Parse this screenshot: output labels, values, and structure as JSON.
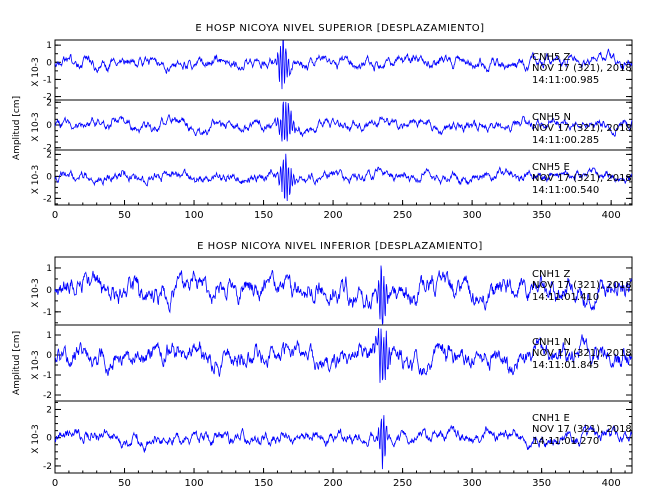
{
  "chart_data": [
    {
      "type": "line",
      "title": "E HOSP NICOYA NIVEL SUPERIOR [DESPLAZAMIENTO]",
      "ylabel": "Amplitud [cm]",
      "scale_label": "X 10-3",
      "xlim": [
        0,
        415
      ],
      "xticks": [
        "0",
        "50",
        "100",
        "150",
        "200",
        "250",
        "300",
        "350",
        "400"
      ],
      "colors": {
        "trace": "#0000ff",
        "axes": "#000000"
      },
      "panels": [
        {
          "name": "CNH5 Z",
          "channel": "CNH5",
          "component": "Z",
          "date": "NOV 17 (321), 2018",
          "time": "14:11:00.985",
          "ylim": [
            -2.2,
            1.3
          ],
          "yticks": [
            "1",
            "0",
            "-1",
            "-2"
          ],
          "noise": 0.32,
          "freq": 1.6,
          "event_at": 164,
          "event_amp": 1.6,
          "event_width": 3.5
        },
        {
          "name": "CNH5 N",
          "channel": "CNH5",
          "component": "N",
          "date": "NOV 17 (321), 2018",
          "time": "14:11:00.285",
          "ylim": [
            -2.2,
            2.2
          ],
          "yticks": [
            "2",
            "0",
            "-2"
          ],
          "noise": 0.45,
          "freq": 2.0,
          "event_at": 166,
          "event_amp": 1.9,
          "event_width": 5
        },
        {
          "name": "CNH5 E",
          "channel": "CNH5",
          "component": "E",
          "date": "NOV 17 (321), 2018",
          "time": "14:11:00.540",
          "ylim": [
            -2.6,
            2.4
          ],
          "yticks": [
            "2",
            "0",
            "-2"
          ],
          "noise": 0.45,
          "freq": 2.0,
          "event_at": 166,
          "event_amp": 2.0,
          "event_width": 4
        }
      ]
    },
    {
      "type": "line",
      "title": "E HOSP NICOYA NIVEL INFERIOR [DESPLAZAMIENTO]",
      "ylabel": "Amplitud [cm]",
      "scale_label": "X 10-3",
      "xlim": [
        0,
        415
      ],
      "xticks": [
        "0",
        "50",
        "100",
        "150",
        "200",
        "250",
        "300",
        "350",
        "400"
      ],
      "colors": {
        "trace": "#0000ff",
        "axes": "#000000"
      },
      "panels": [
        {
          "name": "CNH1 Z",
          "channel": "CNH1",
          "component": "Z",
          "date": "NOV 17 (321), 2018",
          "time": "14:11:01.410",
          "ylim": [
            -1.6,
            1.5
          ],
          "yticks": [
            "1",
            "0",
            "-1"
          ],
          "noise": 0.5,
          "freq": 0.9,
          "event_at": 235,
          "event_amp": 1.4,
          "event_width": 3
        },
        {
          "name": "CNH1 N",
          "channel": "CNH1",
          "component": "N",
          "date": "NOV 17 (321), 2018",
          "time": "14:11:01.845",
          "ylim": [
            -2.3,
            1.5
          ],
          "yticks": [
            "1",
            "0",
            "-1",
            "-2"
          ],
          "noise": 0.5,
          "freq": 1.1,
          "event_at": 236,
          "event_amp": 1.5,
          "event_width": 4
        },
        {
          "name": "CNH1 E",
          "channel": "CNH1",
          "component": "E",
          "date": "NOV 17 (321), 2018",
          "time": "14:11:01.270",
          "ylim": [
            -2.5,
            2.6
          ],
          "yticks": [
            "2",
            "0",
            "-2"
          ],
          "noise": 0.45,
          "freq": 1.0,
          "event_at": 236,
          "event_amp": 1.7,
          "event_width": 3
        }
      ]
    }
  ]
}
